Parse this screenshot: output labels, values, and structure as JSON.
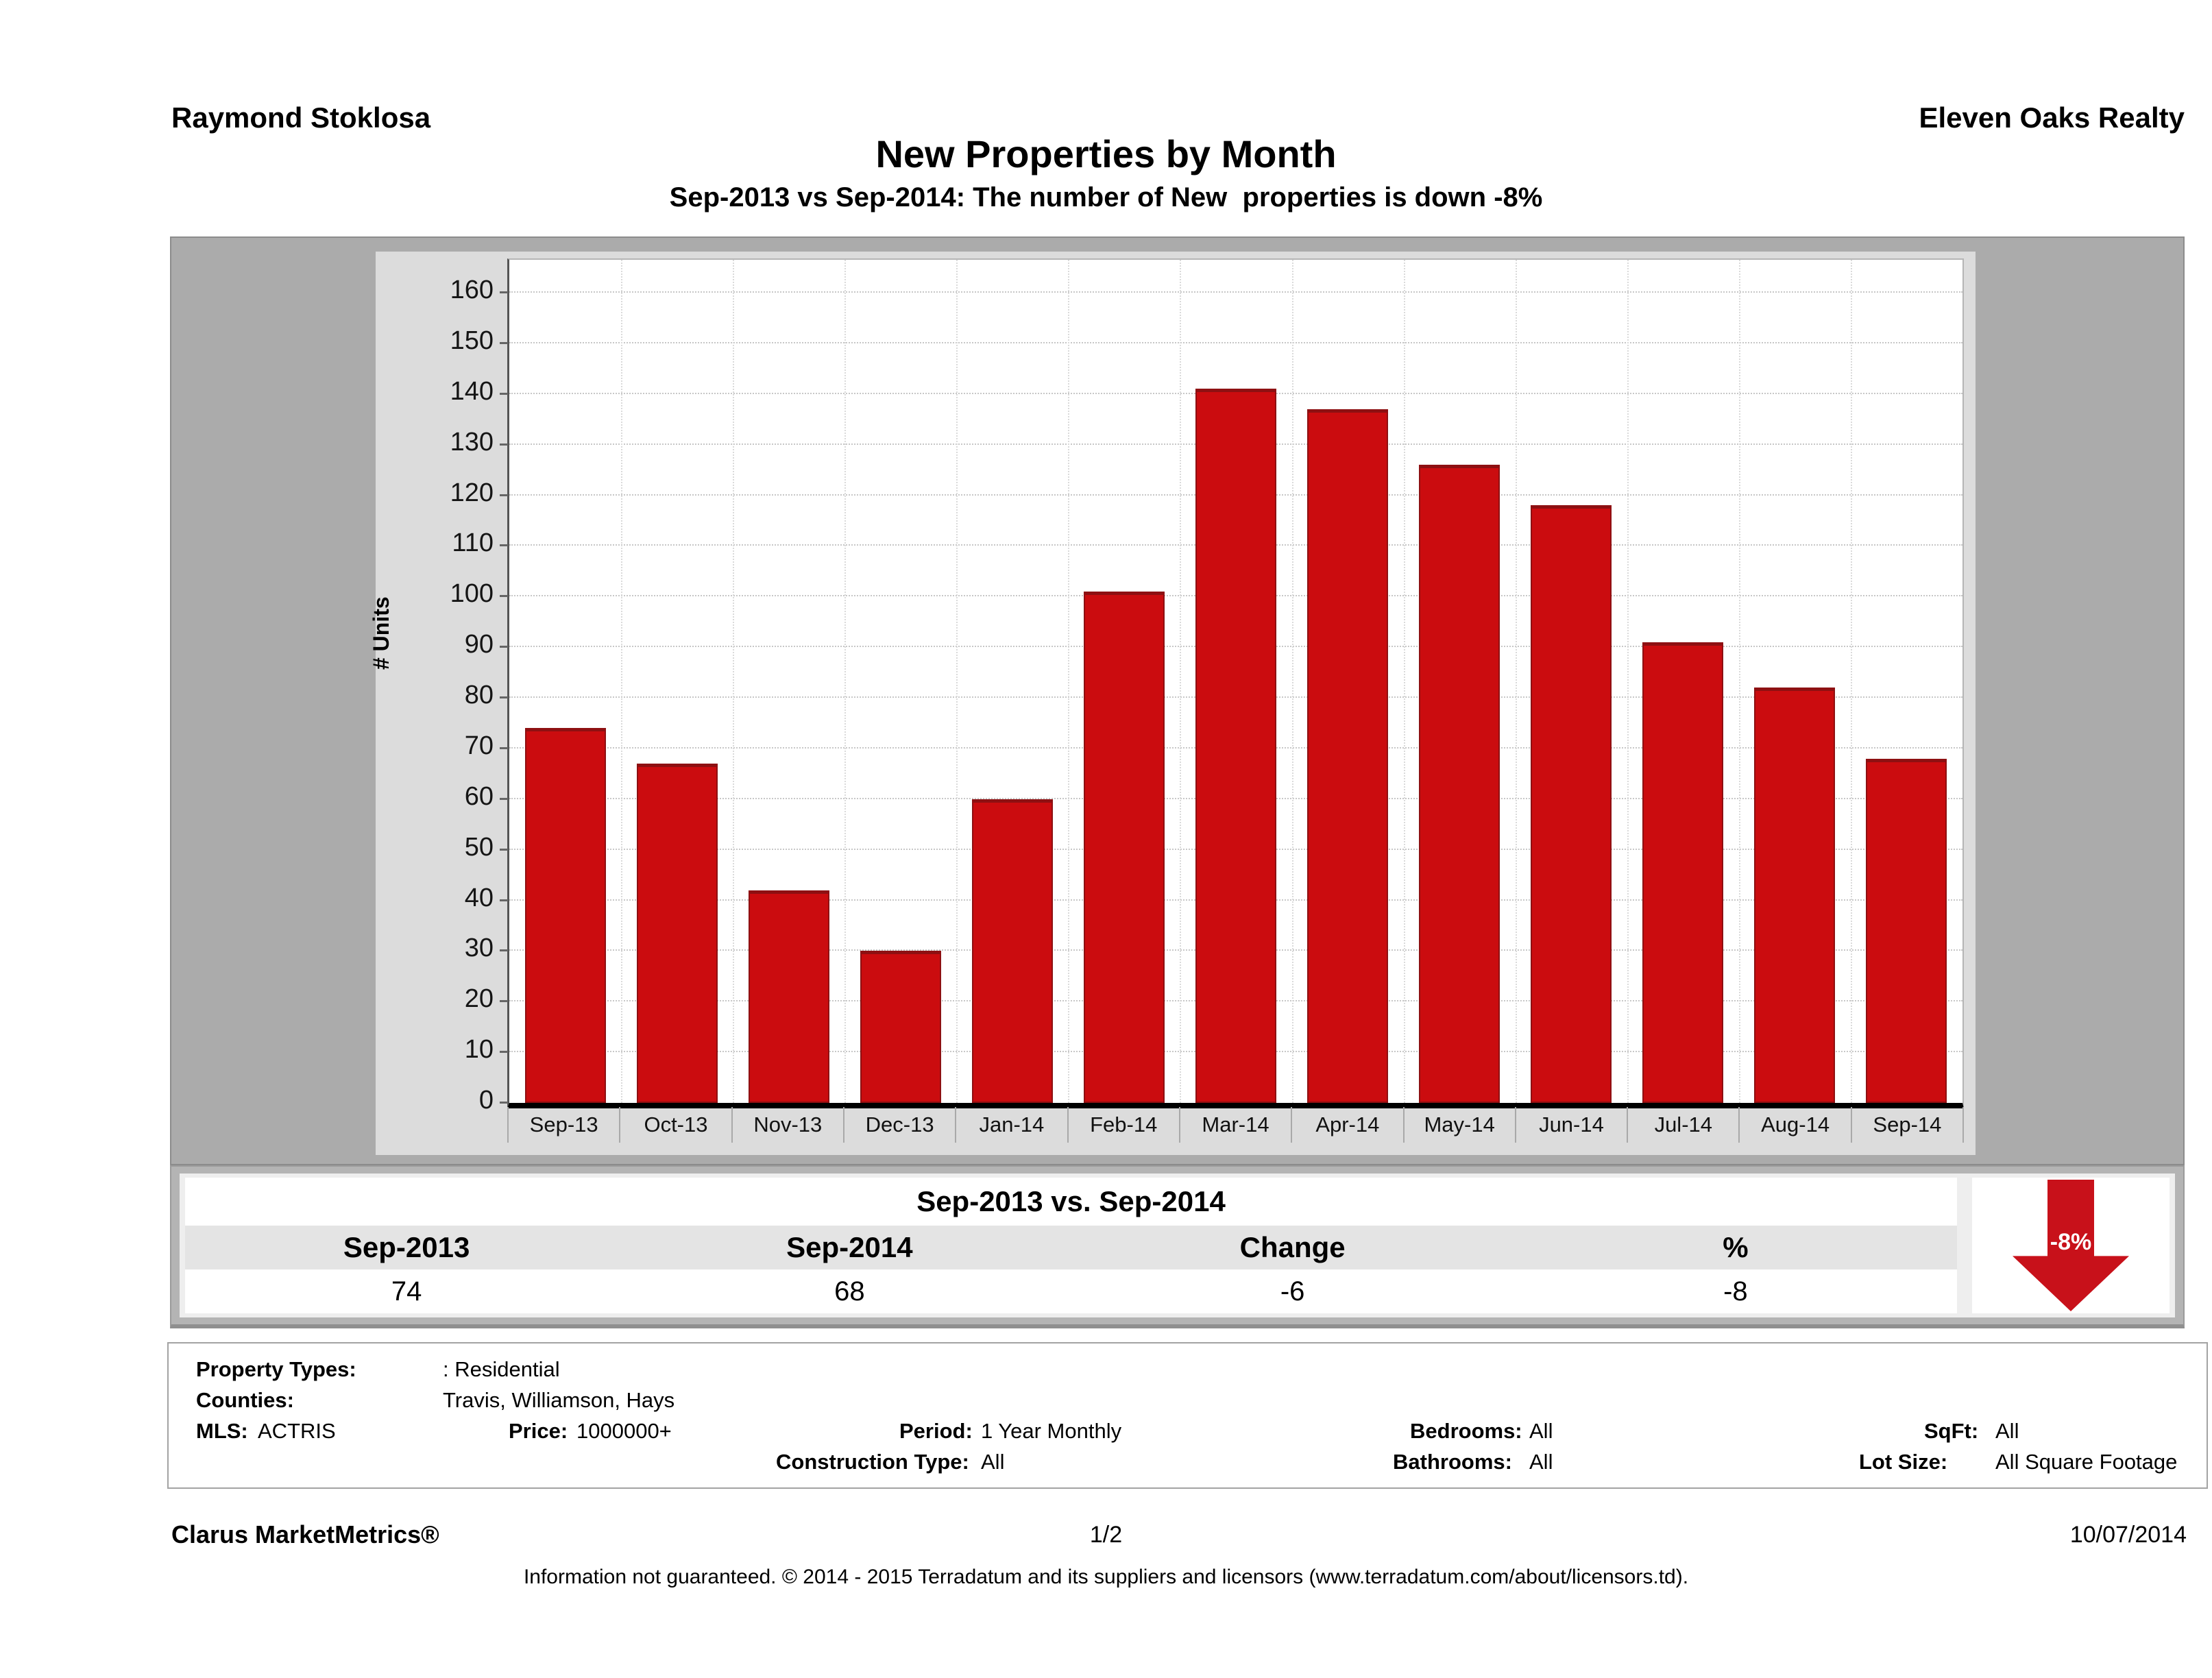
{
  "header": {
    "agent": "Raymond Stoklosa",
    "company": "Eleven Oaks Realty",
    "title": "New Properties by Month",
    "subtitle": "Sep-2013 vs Sep-2014: The number of New  properties is down -8%"
  },
  "chart_data": {
    "type": "bar",
    "categories": [
      "Sep-13",
      "Oct-13",
      "Nov-13",
      "Dec-13",
      "Jan-14",
      "Feb-14",
      "Mar-14",
      "Apr-14",
      "May-14",
      "Jun-14",
      "Jul-14",
      "Aug-14",
      "Sep-14"
    ],
    "values": [
      74,
      67,
      42,
      30,
      60,
      101,
      141,
      137,
      126,
      118,
      91,
      82,
      68
    ],
    "title": "New Properties by Month",
    "xlabel": "",
    "ylabel": "# Units",
    "ylim": [
      0,
      160
    ],
    "ytick_step": 10,
    "grid": true,
    "legend": "none",
    "bar_color": "#cb0c0f",
    "bar_edge_color": "#8e1012"
  },
  "summary": {
    "title": "Sep-2013 vs. Sep-2014",
    "columns": [
      "Sep-2013",
      "Sep-2014",
      "Change",
      "%"
    ],
    "values": [
      "74",
      "68",
      "-6",
      "-8"
    ],
    "arrow_label": "-8%",
    "arrow_color": "#c8111a"
  },
  "filters": {
    "property_types_label": "Property Types:",
    "property_types": ": Residential",
    "counties_label": "Counties:",
    "counties": "Travis, Williamson, Hays",
    "mls_label": "MLS:",
    "mls": "ACTRIS",
    "price_label": "Price:",
    "price": "1000000+",
    "period_label": "Period:",
    "period": "1 Year Monthly",
    "bedrooms_label": "Bedrooms:",
    "bedrooms": "All",
    "sqft_label": "SqFt:",
    "sqft": "All",
    "construction_label": "Construction Type:",
    "construction": "All",
    "bathrooms_label": "Bathrooms:",
    "bathrooms": "All",
    "lot_label": "Lot Size:",
    "lot": "All Square Footage"
  },
  "footer": {
    "brand": "Clarus MarketMetrics®",
    "page": "1/2",
    "date": "10/07/2014",
    "disclaimer": "Information not guaranteed. © 2014 - 2015 Terradatum and its suppliers and licensors (www.terradatum.com/about/licensors.td)."
  }
}
